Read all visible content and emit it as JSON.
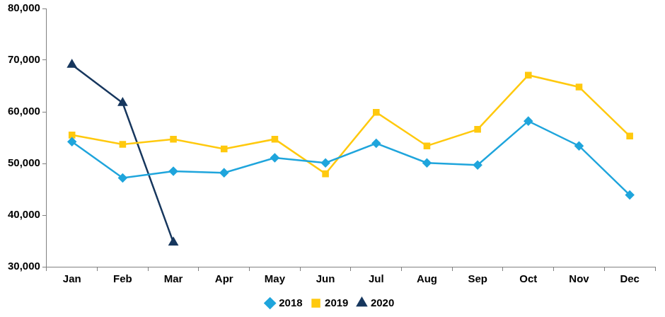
{
  "chart_data": {
    "type": "line",
    "categories": [
      "Jan",
      "Feb",
      "Mar",
      "Apr",
      "May",
      "Jun",
      "Jul",
      "Aug",
      "Sep",
      "Oct",
      "Nov",
      "Dec"
    ],
    "series": [
      {
        "name": "2018",
        "color": "#1fa5dc",
        "marker": "diamond",
        "values": [
          54200,
          47200,
          48500,
          48200,
          51100,
          50100,
          53900,
          50100,
          49700,
          58200,
          53400,
          43900
        ]
      },
      {
        "name": "2019",
        "color": "#ffc90e",
        "marker": "square",
        "values": [
          55500,
          53700,
          54700,
          52800,
          54700,
          48000,
          59900,
          53400,
          56600,
          67100,
          64800,
          55300
        ]
      },
      {
        "name": "2020",
        "color": "#17375e",
        "marker": "triangle",
        "values": [
          69100,
          61700,
          34700,
          null,
          null,
          null,
          null,
          null,
          null,
          null,
          null,
          null
        ]
      }
    ],
    "ylim": [
      30000,
      80000
    ],
    "yticks": [
      {
        "value": 30000,
        "label": "30,000"
      },
      {
        "value": 40000,
        "label": "40,000"
      },
      {
        "value": 50000,
        "label": "50,000"
      },
      {
        "value": 60000,
        "label": "60,000"
      },
      {
        "value": 70000,
        "label": "70,000"
      },
      {
        "value": 80000,
        "label": "80,000"
      }
    ],
    "grid": false,
    "legend": "bottom"
  }
}
